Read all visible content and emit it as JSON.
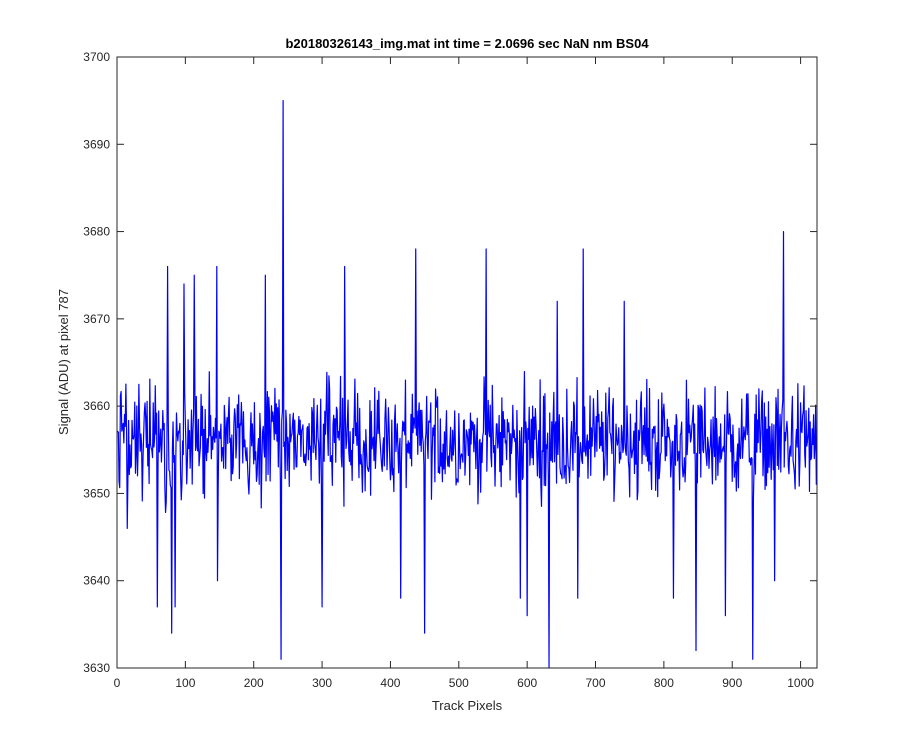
{
  "chart_data": {
    "type": "line",
    "title": "b20180326143_img.mat int time = 2.0696 sec  NaN nm BS04",
    "xlabel": "Track Pixels",
    "ylabel": "Signal (ADU) at pixel 787",
    "xlim": [
      0,
      1024
    ],
    "ylim": [
      3630,
      3700
    ],
    "xticks": [
      0,
      100,
      200,
      300,
      400,
      500,
      600,
      700,
      800,
      900,
      1000
    ],
    "yticks": [
      3630,
      3640,
      3650,
      3660,
      3670,
      3680,
      3690,
      3700
    ],
    "xtick_labels": [
      "0",
      "100",
      "200",
      "300",
      "400",
      "500",
      "600",
      "700",
      "800",
      "900",
      "1000"
    ],
    "ytick_labels": [
      "3630",
      "3640",
      "3650",
      "3660",
      "3670",
      "3680",
      "3690",
      "3700"
    ],
    "grid": false,
    "series": [
      {
        "color": "#0000ff",
        "n_points": 1024,
        "baseline": 3656,
        "noise_amplitude": 7,
        "notable_points": [
          {
            "x": 0,
            "y": 3657
          },
          {
            "x": 15,
            "y": 3646
          },
          {
            "x": 59,
            "y": 3637
          },
          {
            "x": 74,
            "y": 3676
          },
          {
            "x": 80,
            "y": 3634
          },
          {
            "x": 85,
            "y": 3637
          },
          {
            "x": 98,
            "y": 3674
          },
          {
            "x": 113,
            "y": 3675
          },
          {
            "x": 146,
            "y": 3676
          },
          {
            "x": 147,
            "y": 3640
          },
          {
            "x": 217,
            "y": 3675
          },
          {
            "x": 240,
            "y": 3631
          },
          {
            "x": 243,
            "y": 3695
          },
          {
            "x": 300,
            "y": 3637
          },
          {
            "x": 333,
            "y": 3676
          },
          {
            "x": 415,
            "y": 3638
          },
          {
            "x": 437,
            "y": 3678
          },
          {
            "x": 450,
            "y": 3634
          },
          {
            "x": 540,
            "y": 3678
          },
          {
            "x": 590,
            "y": 3638
          },
          {
            "x": 600,
            "y": 3636
          },
          {
            "x": 632,
            "y": 3630
          },
          {
            "x": 644,
            "y": 3672
          },
          {
            "x": 674,
            "y": 3638
          },
          {
            "x": 682,
            "y": 3678
          },
          {
            "x": 742,
            "y": 3672
          },
          {
            "x": 814,
            "y": 3638
          },
          {
            "x": 847,
            "y": 3632
          },
          {
            "x": 890,
            "y": 3636
          },
          {
            "x": 930,
            "y": 3631
          },
          {
            "x": 962,
            "y": 3640
          },
          {
            "x": 975,
            "y": 3680
          },
          {
            "x": 1023,
            "y": 3651
          }
        ]
      }
    ]
  }
}
